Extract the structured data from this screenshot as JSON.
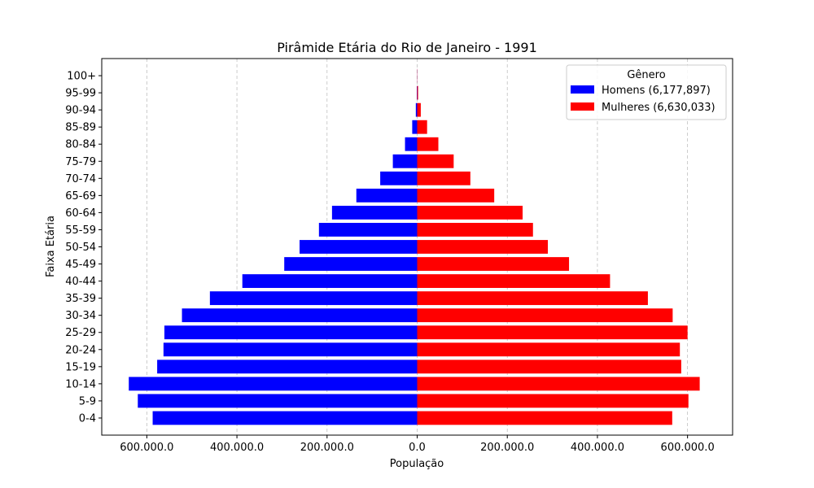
{
  "chart_data": {
    "type": "bar",
    "orientation": "horizontal",
    "title": "Pirâmide Etária do Rio de Janeiro - 1991",
    "xlabel": "População",
    "ylabel": "Faixa Etária",
    "categories": [
      "0-4",
      "5-9",
      "10-14",
      "15-19",
      "20-24",
      "25-29",
      "30-34",
      "35-39",
      "40-44",
      "45-49",
      "50-54",
      "55-59",
      "60-64",
      "65-69",
      "70-74",
      "75-79",
      "80-84",
      "85-89",
      "90-94",
      "95-99",
      "100+"
    ],
    "series": [
      {
        "name": "Homens (6,177,897)",
        "color": "#0000ff",
        "direction": "negative",
        "values": [
          587000,
          620000,
          640000,
          577000,
          563000,
          561000,
          522000,
          460000,
          388000,
          295000,
          261000,
          218000,
          189000,
          135000,
          82000,
          54000,
          27000,
          11000,
          3000,
          800,
          200
        ]
      },
      {
        "name": "Mulheres (6,630,033)",
        "color": "#ff0000",
        "direction": "positive",
        "values": [
          566000,
          602000,
          627000,
          586000,
          583000,
          600000,
          567000,
          512000,
          428000,
          337000,
          290000,
          257000,
          234000,
          171000,
          118000,
          81000,
          47000,
          22000,
          8000,
          2000,
          400
        ]
      }
    ],
    "xlim": [
      -700000,
      700000
    ],
    "xticks": [
      -600000,
      -400000,
      -200000,
      0,
      200000,
      400000,
      600000
    ],
    "xtick_labels": [
      "600.000.0",
      "400.000.0",
      "200.000.0",
      "0.0",
      "200.000.0",
      "400.000.0",
      "600.000.0"
    ],
    "grid": "x-dashed",
    "legend": {
      "title": "Gênero",
      "placement": "top-right"
    }
  }
}
